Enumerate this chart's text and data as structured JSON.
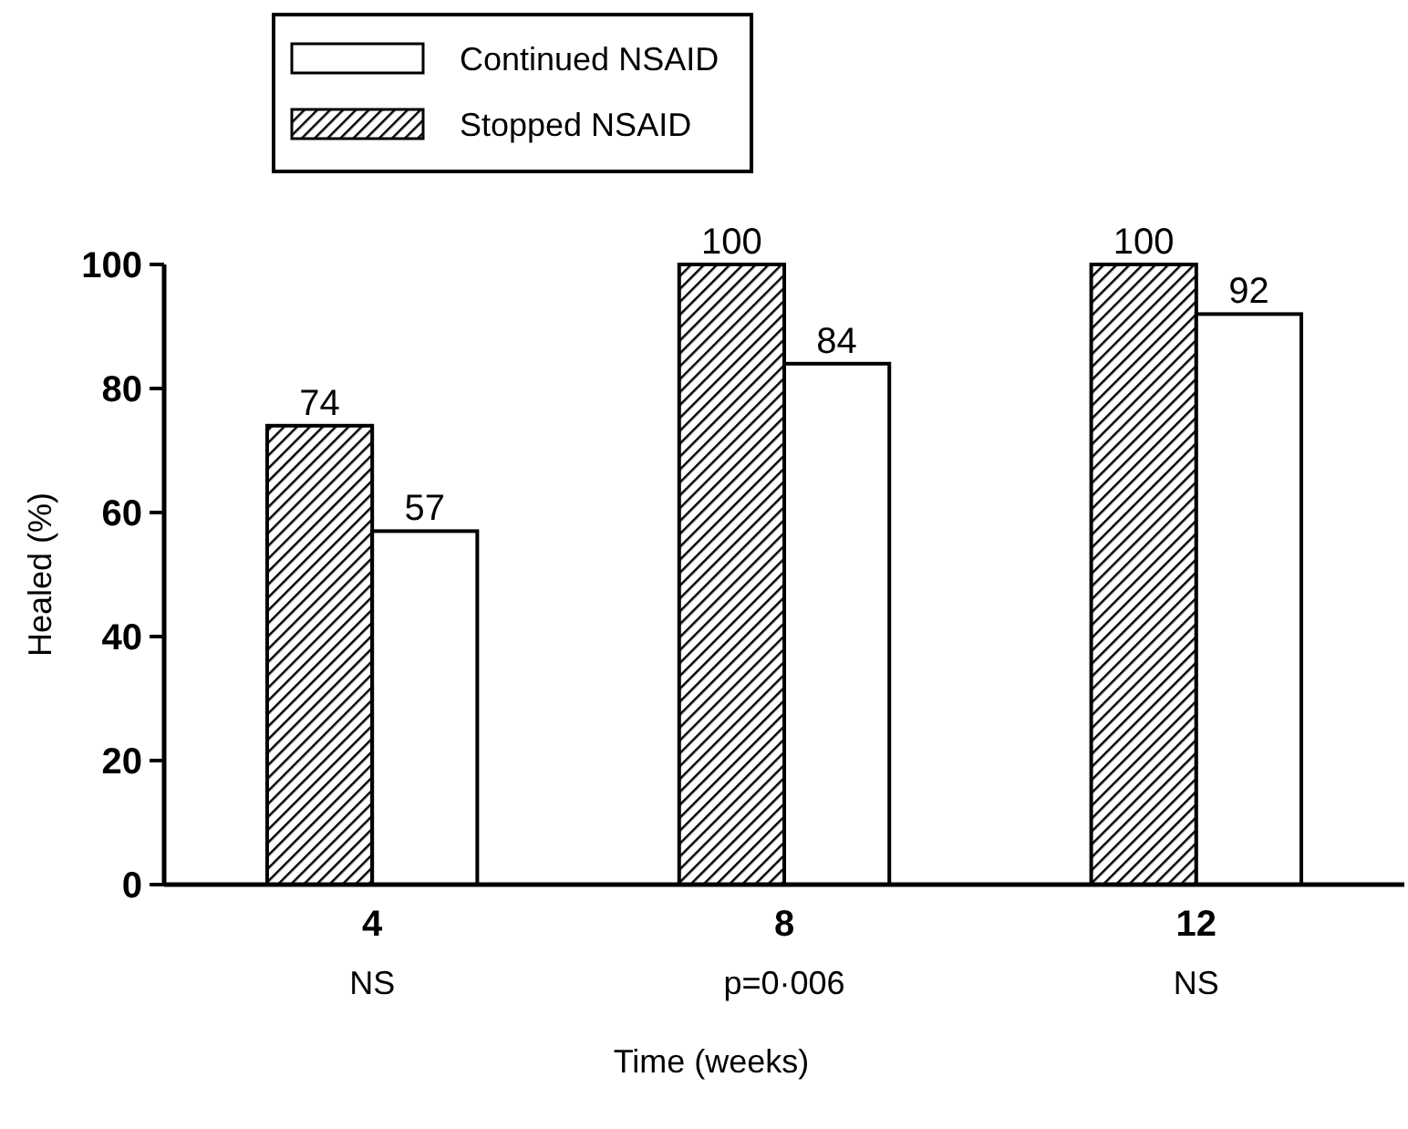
{
  "chart_data": {
    "type": "bar",
    "xlabel": "Time (weeks)",
    "ylabel": "Healed (%)",
    "categories": [
      "4",
      "8",
      "12"
    ],
    "series": [
      {
        "name": "Stopped NSAID",
        "color": "#000000",
        "values": [
          74,
          100,
          100
        ]
      },
      {
        "name": "Continued NSAID",
        "color": "#ffffff",
        "values": [
          57,
          84,
          92
        ]
      }
    ],
    "ylim": [
      0,
      100
    ],
    "yticks": [
      0,
      20,
      40,
      60,
      80,
      100
    ],
    "data_labels": true,
    "legend": "top",
    "grid": false,
    "annotations": [
      "NS",
      "p=0·006",
      "NS"
    ]
  }
}
